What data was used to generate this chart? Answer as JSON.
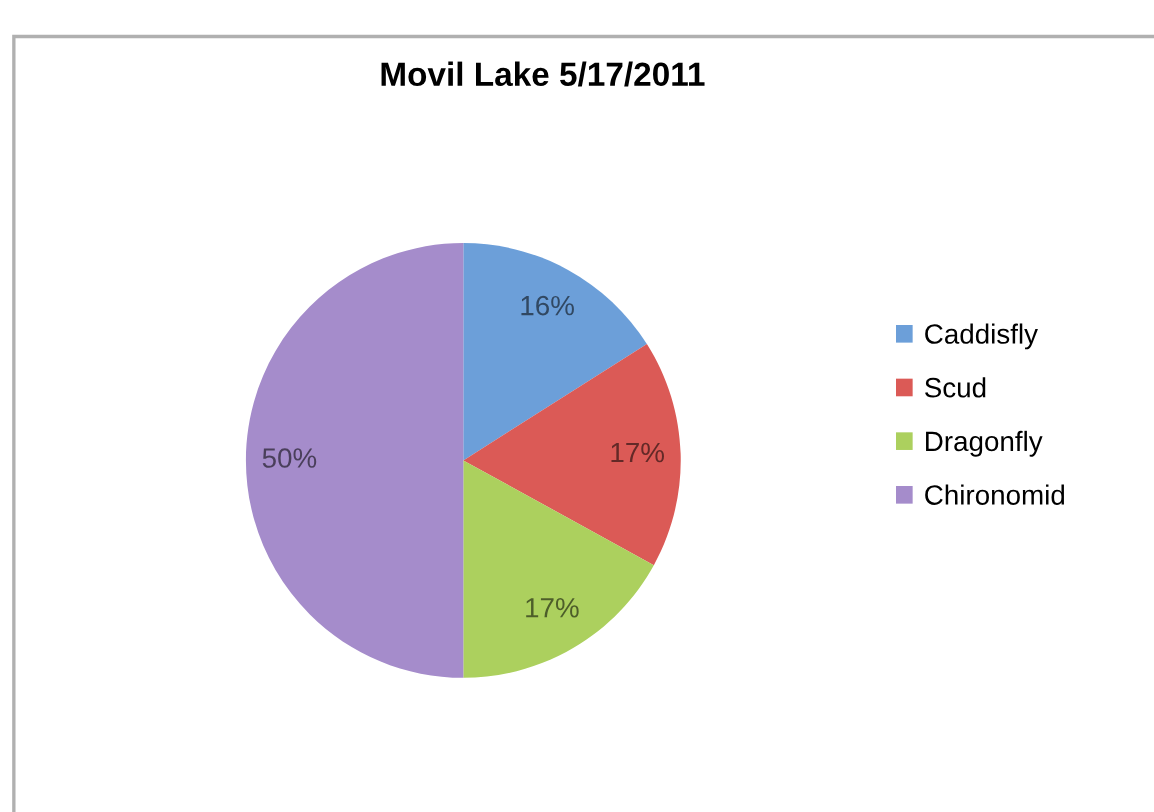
{
  "chart_data": {
    "type": "pie",
    "title": "Movil Lake 5/17/2011",
    "categories": [
      "Caddisfly",
      "Scud",
      "Dragonfly",
      "Chironomid"
    ],
    "values": [
      16,
      17,
      17,
      50
    ],
    "colors": [
      "#6c9fd9",
      "#db5a56",
      "#acd05e",
      "#a58ccb"
    ],
    "value_labels": [
      "16%",
      "17%",
      "17%",
      "50%"
    ],
    "legend": "right"
  }
}
